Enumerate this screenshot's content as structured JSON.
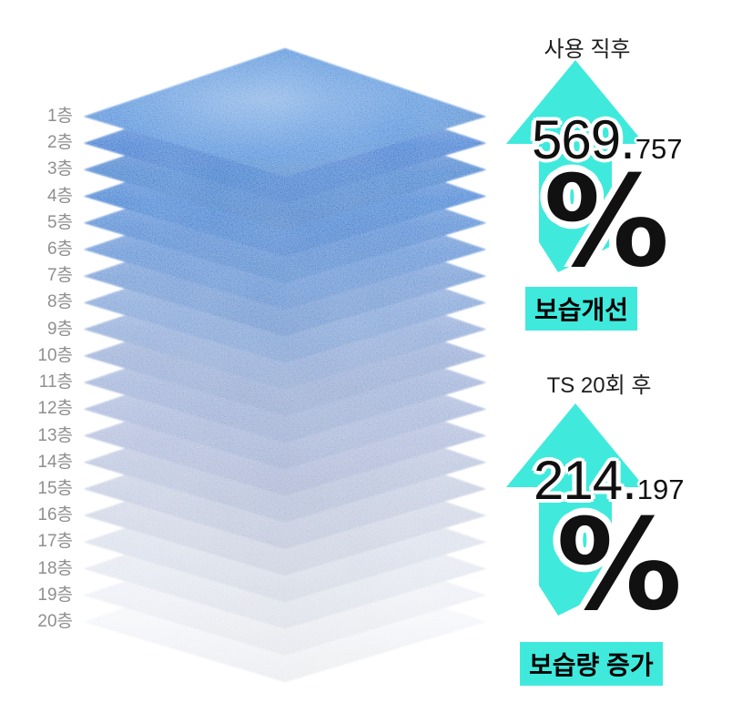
{
  "page": {
    "background": "#ffffff"
  },
  "stack": {
    "layers": [
      {
        "label": "1층",
        "color": "#3A80D6"
      },
      {
        "label": "2층",
        "color": "#2569CB"
      },
      {
        "label": "3층",
        "color": "#2C6FC8"
      },
      {
        "label": "4층",
        "color": "#2C70CD"
      },
      {
        "label": "5층",
        "color": "#3B79CE"
      },
      {
        "label": "6층",
        "color": "#4C82D0"
      },
      {
        "label": "7층",
        "color": "#5C8ACF"
      },
      {
        "label": "8층",
        "color": "#6E95D2"
      },
      {
        "label": "9층",
        "color": "#7E9DD3"
      },
      {
        "label": "10층",
        "color": "#879FD0"
      },
      {
        "label": "11층",
        "color": "#8FA4D2"
      },
      {
        "label": "12층",
        "color": "#9AABD5"
      },
      {
        "label": "13층",
        "color": "#A4B1D7"
      },
      {
        "label": "14층",
        "color": "#AEBAD9"
      },
      {
        "label": "15층",
        "color": "#BAC4DC"
      },
      {
        "label": "16층",
        "color": "#C8CFE2"
      },
      {
        "label": "17층",
        "color": "#D5DBE9"
      },
      {
        "label": "18층",
        "color": "#E0E4EE"
      },
      {
        "label": "19층",
        "color": "#EAEDF4"
      },
      {
        "label": "20층",
        "color": "#F2F4F8"
      }
    ]
  },
  "metrics": [
    {
      "title": "사용 직후",
      "value_main": "569.",
      "value_frac": "757",
      "unit": "%",
      "caption": "보습개선"
    },
    {
      "title": "TS 20회 후",
      "value_main": "214.",
      "value_frac": "197",
      "unit": "%",
      "caption": "보습량 증가"
    }
  ],
  "colors": {
    "accent": "#3FEADD",
    "label_gray": "#8F8F8F",
    "text_dark": "#1E1E1E",
    "number_black": "#101010"
  }
}
